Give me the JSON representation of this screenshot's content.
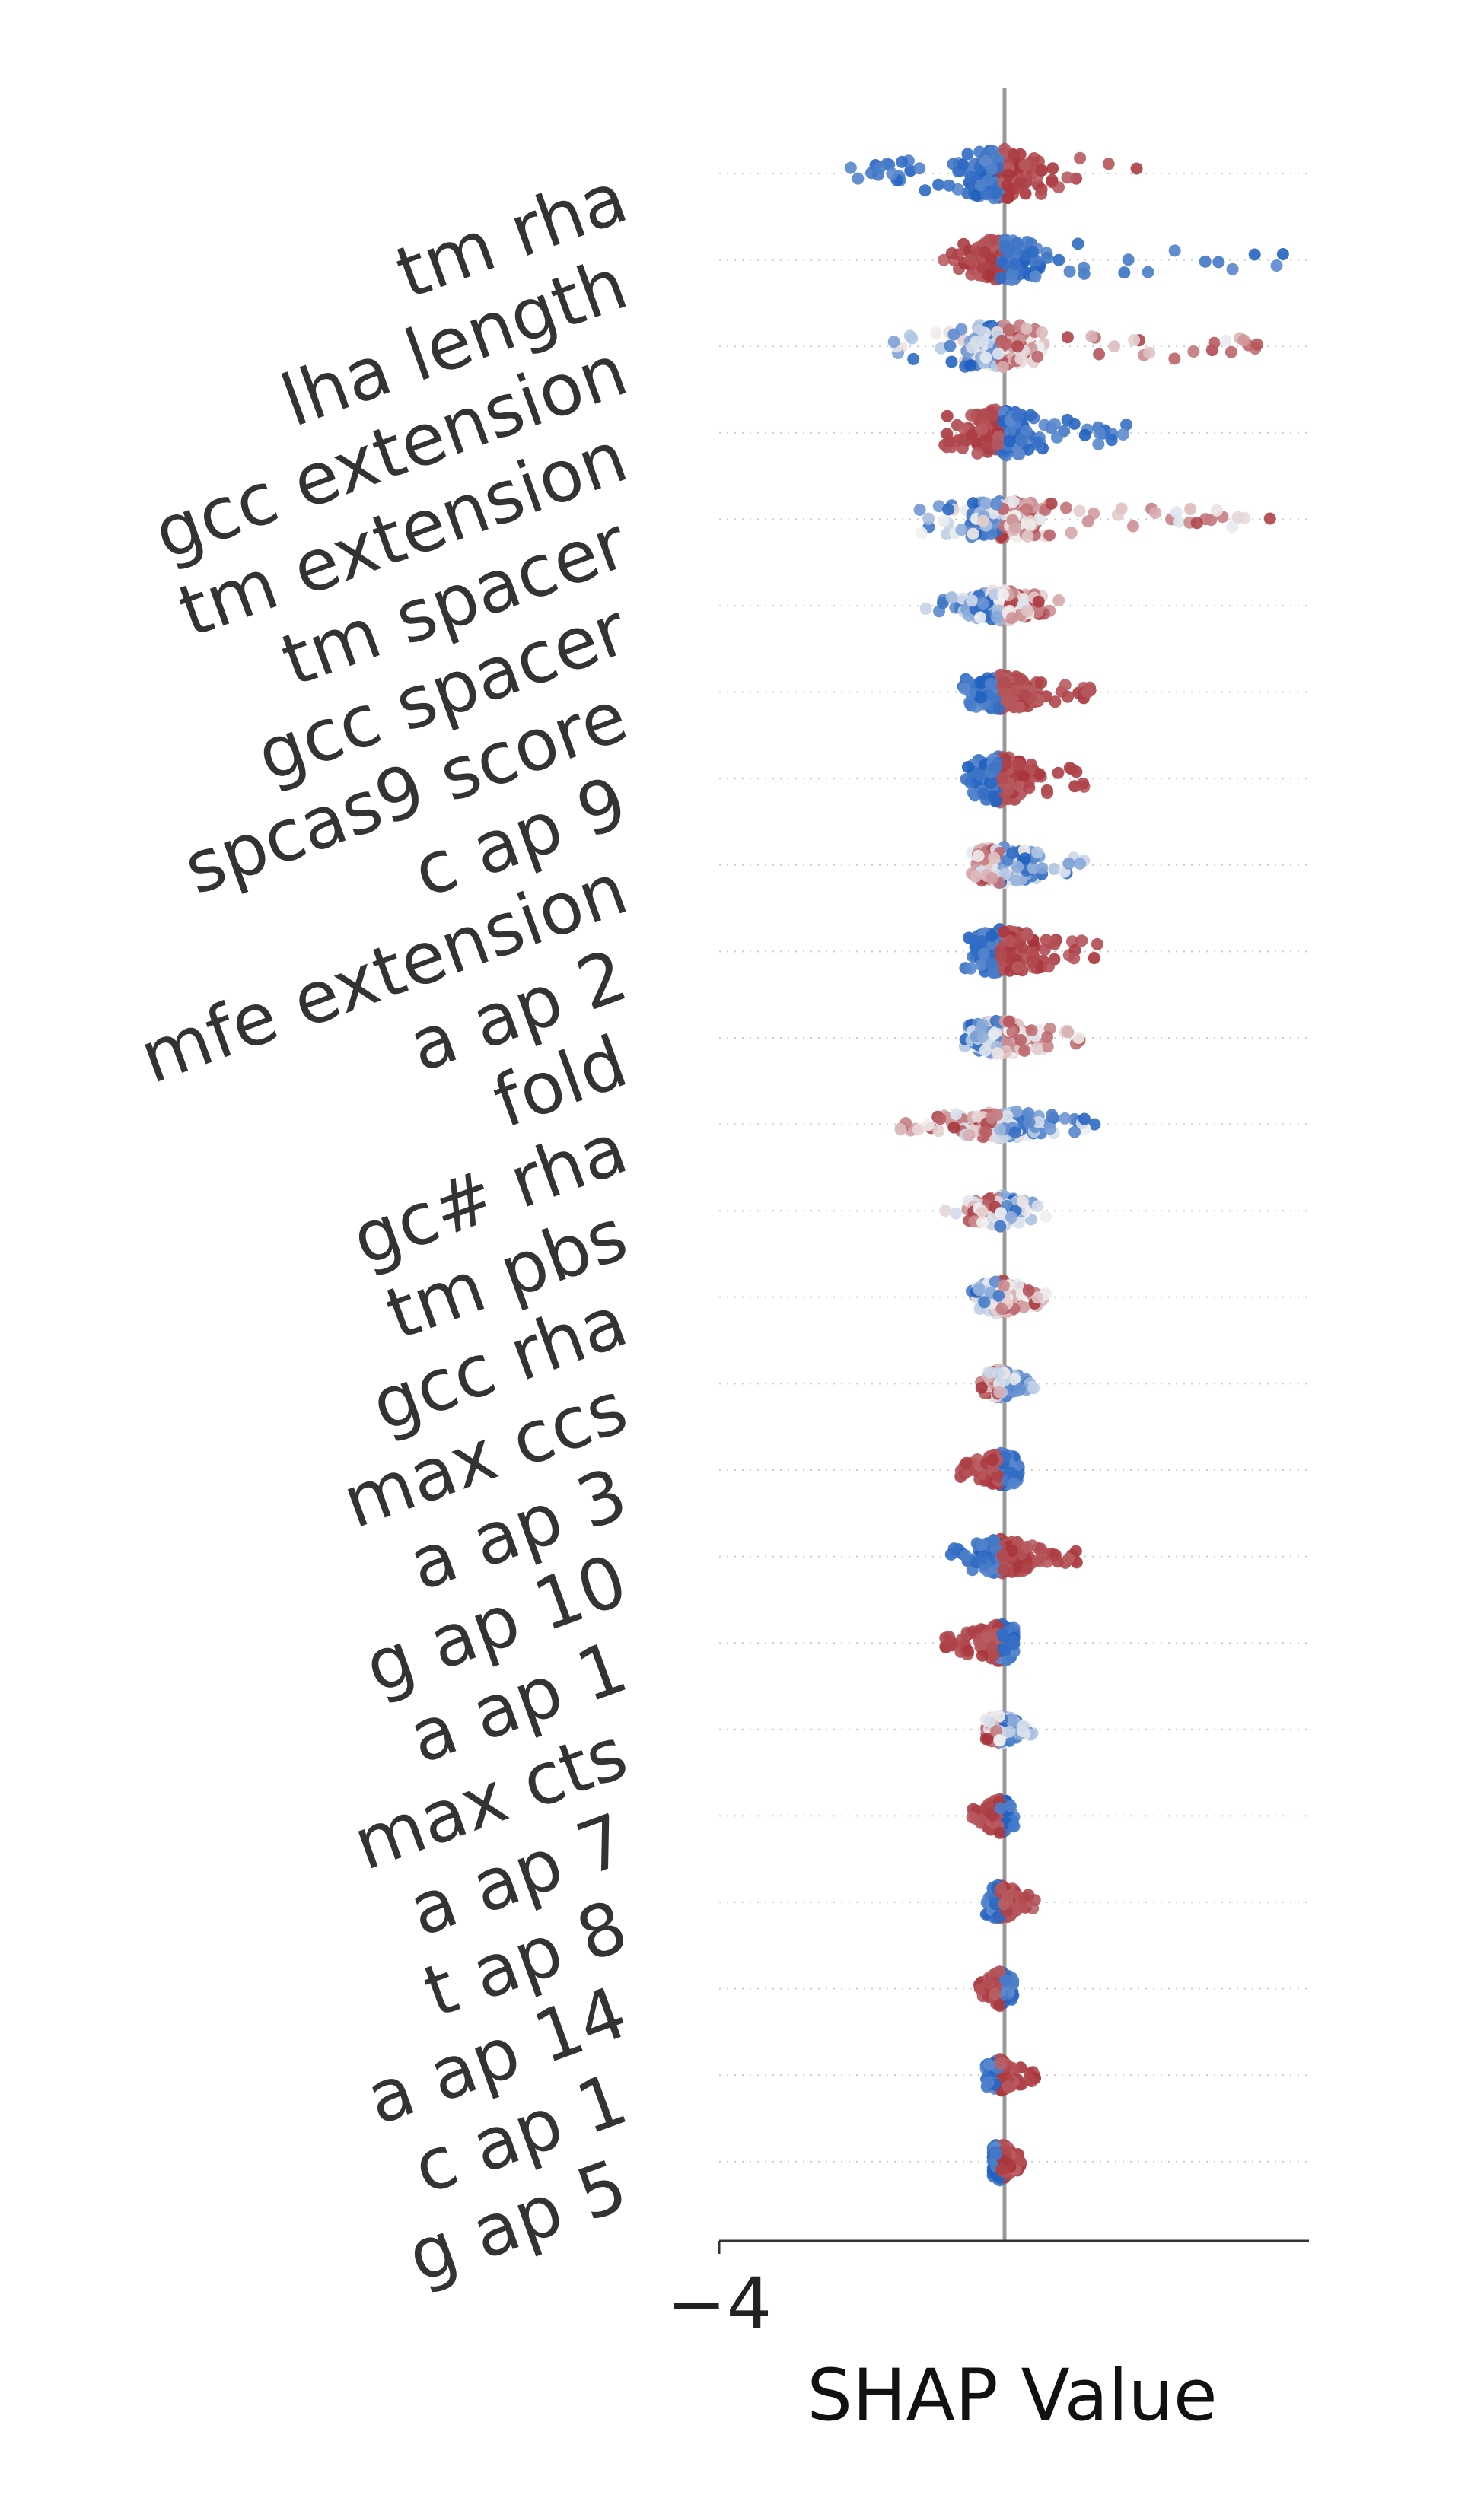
{
  "chart_data": {
    "type": "scatter",
    "subtype": "shap-beeswarm",
    "title": "",
    "xlabel": "SHAP Value",
    "ylabel": "",
    "xlim": [
      -4,
      4.4
    ],
    "x_ticks": [
      {
        "value": -4,
        "label": "−4"
      }
    ],
    "zero_line": 0,
    "grid": "dotted horizontal row guides",
    "legend": "none",
    "colors": {
      "low": "#1f5fbf",
      "mid": "#f2f2f2",
      "high": "#a8333a"
    },
    "features": [
      {
        "name": "tm rha",
        "x_range": [
          -2.2,
          2.0
        ],
        "spread": 0.8,
        "low_side": "left",
        "mixed": false
      },
      {
        "name": "lha length",
        "x_range": [
          -0.8,
          4.1
        ],
        "spread": 0.65,
        "low_side": "right",
        "mixed": false
      },
      {
        "name": "gcc extension",
        "x_range": [
          -1.6,
          4.0
        ],
        "spread": 0.7,
        "low_side": "left",
        "mixed": true
      },
      {
        "name": "tm extension",
        "x_range": [
          -0.8,
          1.8
        ],
        "spread": 0.75,
        "low_side": "right",
        "mixed": false
      },
      {
        "name": "tm spacer",
        "x_range": [
          -1.2,
          3.9
        ],
        "spread": 0.6,
        "low_side": "left",
        "mixed": true
      },
      {
        "name": "gcc spacer",
        "x_range": [
          -1.1,
          0.9
        ],
        "spread": 0.5,
        "low_side": "left",
        "mixed": true
      },
      {
        "name": "spcas9 score",
        "x_range": [
          -0.6,
          1.3
        ],
        "spread": 0.55,
        "low_side": "left",
        "mixed": false
      },
      {
        "name": "c ap 9",
        "x_range": [
          -0.5,
          1.2
        ],
        "spread": 0.75,
        "low_side": "left",
        "mixed": false
      },
      {
        "name": "mfe extension",
        "x_range": [
          -0.4,
          1.2
        ],
        "spread": 0.6,
        "low_side": "right",
        "mixed": true
      },
      {
        "name": "a ap 2",
        "x_range": [
          -0.5,
          1.5
        ],
        "spread": 0.7,
        "low_side": "left",
        "mixed": false
      },
      {
        "name": "fold",
        "x_range": [
          -0.5,
          1.2
        ],
        "spread": 0.55,
        "low_side": "left",
        "mixed": true
      },
      {
        "name": "gc# rha",
        "x_range": [
          -1.5,
          1.4
        ],
        "spread": 0.45,
        "low_side": "right",
        "mixed": true
      },
      {
        "name": "tm pbs",
        "x_range": [
          -0.8,
          0.7
        ],
        "spread": 0.5,
        "low_side": "right",
        "mixed": true
      },
      {
        "name": "gcc rha",
        "x_range": [
          -0.5,
          0.7
        ],
        "spread": 0.55,
        "low_side": "left",
        "mixed": true
      },
      {
        "name": "max ccs",
        "x_range": [
          -0.3,
          0.5
        ],
        "spread": 0.45,
        "low_side": "right",
        "mixed": true
      },
      {
        "name": "a ap 3",
        "x_range": [
          -0.6,
          0.3
        ],
        "spread": 0.55,
        "low_side": "right",
        "mixed": false
      },
      {
        "name": "g ap 10",
        "x_range": [
          -0.7,
          1.1
        ],
        "spread": 0.55,
        "low_side": "left",
        "mixed": false
      },
      {
        "name": "a ap 1",
        "x_range": [
          -0.8,
          0.2
        ],
        "spread": 0.6,
        "low_side": "right",
        "mixed": false
      },
      {
        "name": "max cts",
        "x_range": [
          -0.2,
          0.5
        ],
        "spread": 0.45,
        "low_side": "right",
        "mixed": true
      },
      {
        "name": "a ap 7",
        "x_range": [
          -0.4,
          0.2
        ],
        "spread": 0.55,
        "low_side": "right",
        "mixed": false
      },
      {
        "name": "t ap 8",
        "x_range": [
          -0.2,
          0.5
        ],
        "spread": 0.55,
        "low_side": "left",
        "mixed": false
      },
      {
        "name": "a ap 14",
        "x_range": [
          -0.3,
          0.2
        ],
        "spread": 0.55,
        "low_side": "right",
        "mixed": false
      },
      {
        "name": "c ap 1",
        "x_range": [
          -0.2,
          0.5
        ],
        "spread": 0.5,
        "low_side": "left",
        "mixed": false
      },
      {
        "name": "g ap 5",
        "x_range": [
          -0.1,
          0.3
        ],
        "spread": 0.6,
        "low_side": "left",
        "mixed": false
      }
    ]
  }
}
